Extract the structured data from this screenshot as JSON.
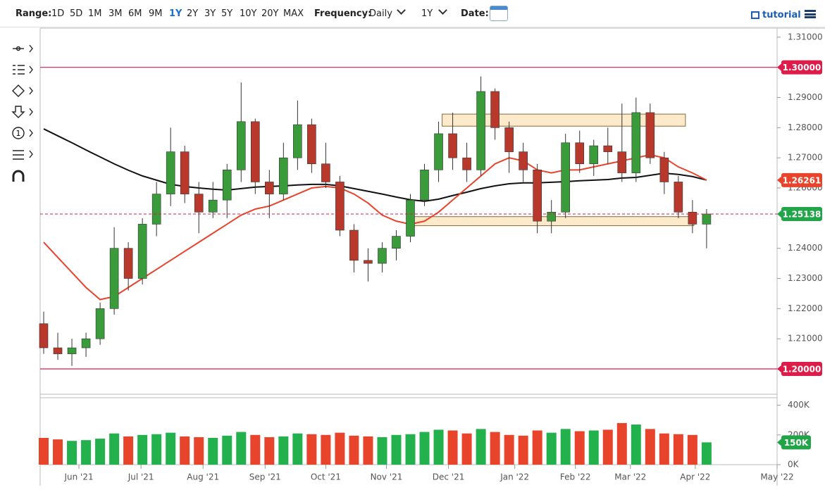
{
  "toolbar": {
    "range_label": "Range:",
    "ranges": [
      "1D",
      "5D",
      "1M",
      "3M",
      "6M",
      "9M",
      "1Y",
      "2Y",
      "3Y",
      "5Y",
      "10Y",
      "20Y",
      "MAX"
    ],
    "active_range": "1Y",
    "frequency_label": "Frequency:",
    "frequency": "Daily",
    "period": "1Y",
    "date_label": "Date:",
    "tutorial": "tutorial"
  },
  "chart_data": {
    "type": "candlestick",
    "categories": [
      null,
      null,
      null,
      null,
      null,
      null,
      null,
      null,
      null,
      null,
      null,
      null,
      null,
      null,
      null,
      null,
      null,
      null,
      null,
      null,
      null,
      null,
      null,
      null,
      null,
      null,
      null,
      null,
      null,
      null,
      null,
      null,
      null,
      null,
      null,
      null,
      null,
      null,
      null,
      null,
      null,
      null,
      null,
      null,
      null,
      null,
      null,
      null
    ],
    "open": [
      1.215,
      1.207,
      1.205,
      1.207,
      1.21,
      1.22,
      1.24,
      1.23,
      1.248,
      1.258,
      1.272,
      1.258,
      1.252,
      1.256,
      1.266,
      1.282,
      1.262,
      1.258,
      1.27,
      1.281,
      1.268,
      1.262,
      1.246,
      1.236,
      1.235,
      1.24,
      1.244,
      1.256,
      1.266,
      1.278,
      1.27,
      1.266,
      1.292,
      1.28,
      1.272,
      1.266,
      1.249,
      1.252,
      1.275,
      1.268,
      1.274,
      1.272,
      1.265,
      1.285,
      1.27,
      1.262,
      1.252,
      1.248
    ],
    "high": [
      1.219,
      1.212,
      1.21,
      1.212,
      1.222,
      1.247,
      1.242,
      1.25,
      1.262,
      1.28,
      1.274,
      1.262,
      1.262,
      1.268,
      1.295,
      1.283,
      1.266,
      1.275,
      1.289,
      1.283,
      1.275,
      1.264,
      1.248,
      1.24,
      1.242,
      1.246,
      1.258,
      1.268,
      1.282,
      1.285,
      1.275,
      1.297,
      1.293,
      1.282,
      1.275,
      1.268,
      1.256,
      1.278,
      1.279,
      1.276,
      1.28,
      1.288,
      1.29,
      1.288,
      1.272,
      1.264,
      1.256,
      1.253
    ],
    "low": [
      1.205,
      1.203,
      1.201,
      1.204,
      1.208,
      1.218,
      1.226,
      1.228,
      1.244,
      1.254,
      1.255,
      1.245,
      1.25,
      1.25,
      1.262,
      1.258,
      1.25,
      1.256,
      1.266,
      1.265,
      1.26,
      1.244,
      1.232,
      1.229,
      1.232,
      1.236,
      1.242,
      1.254,
      1.262,
      1.266,
      1.262,
      1.264,
      1.276,
      1.265,
      1.262,
      1.245,
      1.245,
      1.25,
      1.265,
      1.264,
      1.268,
      1.262,
      1.262,
      1.268,
      1.258,
      1.25,
      1.245,
      1.24
    ],
    "close": [
      1.207,
      1.205,
      1.207,
      1.21,
      1.22,
      1.24,
      1.23,
      1.248,
      1.258,
      1.272,
      1.258,
      1.252,
      1.256,
      1.266,
      1.282,
      1.262,
      1.258,
      1.27,
      1.281,
      1.268,
      1.262,
      1.246,
      1.236,
      1.235,
      1.24,
      1.244,
      1.256,
      1.266,
      1.278,
      1.27,
      1.266,
      1.292,
      1.28,
      1.272,
      1.266,
      1.249,
      1.252,
      1.275,
      1.268,
      1.274,
      1.272,
      1.265,
      1.285,
      1.27,
      1.262,
      1.252,
      1.248,
      1.25138
    ],
    "last_close_label": "1.25138",
    "up_color": "#3a9b3a",
    "down_color": "#b8392c",
    "xlim": [
      -0.25,
      52
    ],
    "xticks": [
      {
        "value": 2.5,
        "label": "Jun '21"
      },
      {
        "value": 6.9,
        "label": "Jul '21"
      },
      {
        "value": 11.3,
        "label": "Aug '21"
      },
      {
        "value": 15.7,
        "label": "Sep '21"
      },
      {
        "value": 20,
        "label": "Oct '21"
      },
      {
        "value": 24.3,
        "label": "Nov '21"
      },
      {
        "value": 28.7,
        "label": "Dec '21"
      },
      {
        "value": 33.4,
        "label": "Jan '22"
      },
      {
        "value": 37.7,
        "label": "Feb '22"
      },
      {
        "value": 41.6,
        "label": "Mar '22"
      },
      {
        "value": 46.2,
        "label": "Apr '22"
      },
      {
        "value": 52,
        "label": "May '22"
      }
    ],
    "ylim": [
      1.1916,
      1.313
    ],
    "yticks": [
      {
        "value": 1.31,
        "label": "1.31000"
      },
      {
        "value": 1.29,
        "label": "1.29000"
      },
      {
        "value": 1.28,
        "label": "1.28000"
      },
      {
        "value": 1.27,
        "label": "1.27000"
      },
      {
        "value": 1.26,
        "label": "1.26000"
      },
      {
        "value": 1.24,
        "label": "1.24000"
      },
      {
        "value": 1.23,
        "label": "1.23000"
      },
      {
        "value": 1.22,
        "label": "1.22000"
      },
      {
        "value": 1.21,
        "label": "1.21000"
      }
    ],
    "moving_averages": [
      {
        "color": "#111111",
        "label": "1.26261",
        "values": [
          1.2796,
          1.2773,
          1.275,
          1.2726,
          1.2703,
          1.268,
          1.2659,
          1.264,
          1.2626,
          1.2612,
          1.2605,
          1.26,
          1.2596,
          1.2593,
          1.2598,
          1.2603,
          1.2605,
          1.2607,
          1.261,
          1.2612,
          1.2612,
          1.2607,
          1.2598,
          1.2589,
          1.258,
          1.257,
          1.2561,
          1.2556,
          1.2563,
          1.2575,
          1.2586,
          1.2598,
          1.2607,
          1.2614,
          1.2617,
          1.2617,
          1.2619,
          1.2621,
          1.2624,
          1.2626,
          1.2628,
          1.2633,
          1.2635,
          1.2642,
          1.2649,
          1.2645,
          1.2638,
          1.26261
        ]
      },
      {
        "color": "#e8432b",
        "values": [
          1.242,
          1.237,
          1.232,
          1.227,
          1.223,
          1.224,
          1.227,
          1.23,
          1.233,
          1.236,
          1.239,
          1.242,
          1.245,
          1.248,
          1.251,
          1.253,
          1.254,
          1.256,
          1.258,
          1.26,
          1.2605,
          1.26,
          1.258,
          1.255,
          1.251,
          1.249,
          1.248,
          1.249,
          1.252,
          1.256,
          1.26,
          1.264,
          1.268,
          1.27,
          1.269,
          1.266,
          1.265,
          1.266,
          1.266,
          1.267,
          1.268,
          1.269,
          1.27,
          1.271,
          1.27,
          1.267,
          1.265,
          1.2626
        ]
      }
    ],
    "reference_lines": [
      {
        "value": 1.3,
        "label": "1.30000",
        "color": "#dd1c4a"
      },
      {
        "value": 1.2,
        "label": "1.20000",
        "color": "#dd1c4a"
      }
    ],
    "zones": [
      {
        "from": 1.2805,
        "to": 1.2845,
        "start": 28.25,
        "end": 45.5,
        "color": "#fbe3b8"
      },
      {
        "from": 1.2475,
        "to": 1.2505,
        "start": 25.8,
        "end": 46.1,
        "color": "#fbe3b8"
      }
    ],
    "volume": {
      "values": [
        180000,
        170000,
        160000,
        165000,
        175000,
        210000,
        190000,
        200000,
        205000,
        215000,
        190000,
        185000,
        180000,
        195000,
        220000,
        200000,
        185000,
        190000,
        210000,
        205000,
        200000,
        215000,
        195000,
        190000,
        185000,
        200000,
        205000,
        220000,
        235000,
        230000,
        210000,
        240000,
        220000,
        200000,
        195000,
        230000,
        215000,
        240000,
        225000,
        230000,
        235000,
        280000,
        270000,
        240000,
        210000,
        205000,
        200000,
        150000
      ],
      "last_label": "150K",
      "up_color": "#22b14c",
      "down_color": "#e8432b",
      "ylim": [
        0,
        450000
      ],
      "yticks": [
        {
          "value": 0,
          "label": "0K"
        },
        {
          "value": 200000,
          "label": "200K"
        },
        {
          "value": 400000,
          "label": "400K"
        }
      ]
    }
  }
}
